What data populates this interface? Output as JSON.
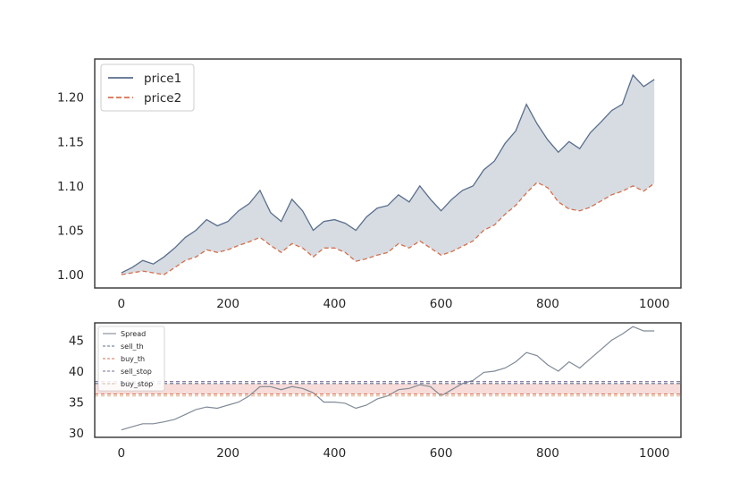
{
  "chart_data": [
    {
      "type": "line",
      "title": "",
      "xlabel": "",
      "ylabel": "",
      "xlim": [
        -50,
        1050
      ],
      "ylim": [
        0.985,
        1.243
      ],
      "xticks": [
        0,
        200,
        400,
        600,
        800,
        1000
      ],
      "xtick_labels": [
        "0",
        "200",
        "400",
        "600",
        "800",
        "1000"
      ],
      "yticks": [
        1.0,
        1.05,
        1.1,
        1.15,
        1.2
      ],
      "ytick_labels": [
        "1.00",
        "1.05",
        "1.10",
        "1.15",
        "1.20"
      ],
      "grid": false,
      "legend_position": "top-left",
      "fill_between": {
        "series": [
          "price1",
          "price2"
        ],
        "color": "#d6dce2"
      },
      "series": [
        {
          "name": "price1",
          "color": "#5a6e8c",
          "style": "solid",
          "x": [
            0,
            20,
            40,
            60,
            80,
            100,
            120,
            140,
            160,
            180,
            200,
            220,
            240,
            260,
            280,
            300,
            320,
            340,
            360,
            380,
            400,
            420,
            440,
            460,
            480,
            500,
            520,
            540,
            560,
            580,
            600,
            620,
            640,
            660,
            680,
            700,
            720,
            740,
            760,
            780,
            800,
            820,
            840,
            860,
            880,
            900,
            920,
            940,
            960,
            980,
            1000
          ],
          "values": [
            1.002,
            1.008,
            1.016,
            1.012,
            1.02,
            1.03,
            1.042,
            1.05,
            1.062,
            1.055,
            1.06,
            1.072,
            1.08,
            1.095,
            1.07,
            1.06,
            1.085,
            1.072,
            1.05,
            1.06,
            1.062,
            1.058,
            1.05,
            1.065,
            1.075,
            1.078,
            1.09,
            1.082,
            1.1,
            1.085,
            1.072,
            1.085,
            1.095,
            1.1,
            1.118,
            1.128,
            1.148,
            1.162,
            1.192,
            1.17,
            1.152,
            1.138,
            1.15,
            1.142,
            1.16,
            1.172,
            1.185,
            1.192,
            1.225,
            1.212,
            1.22
          ]
        },
        {
          "name": "price2",
          "color": "#d4704e",
          "style": "dashed",
          "x": [
            0,
            20,
            40,
            60,
            80,
            100,
            120,
            140,
            160,
            180,
            200,
            220,
            240,
            260,
            280,
            300,
            320,
            340,
            360,
            380,
            400,
            420,
            440,
            460,
            480,
            500,
            520,
            540,
            560,
            580,
            600,
            620,
            640,
            660,
            680,
            700,
            720,
            740,
            760,
            780,
            800,
            820,
            840,
            860,
            880,
            900,
            920,
            940,
            960,
            980,
            1000
          ],
          "values": [
            1.0,
            1.002,
            1.004,
            1.002,
            1.0,
            1.008,
            1.016,
            1.02,
            1.028,
            1.025,
            1.028,
            1.033,
            1.037,
            1.042,
            1.033,
            1.025,
            1.035,
            1.03,
            1.02,
            1.03,
            1.03,
            1.025,
            1.015,
            1.018,
            1.022,
            1.025,
            1.035,
            1.03,
            1.038,
            1.03,
            1.022,
            1.026,
            1.032,
            1.038,
            1.05,
            1.056,
            1.068,
            1.078,
            1.092,
            1.104,
            1.098,
            1.082,
            1.074,
            1.072,
            1.076,
            1.083,
            1.09,
            1.094,
            1.1,
            1.094,
            1.103
          ]
        }
      ]
    },
    {
      "type": "line",
      "title": "",
      "xlabel": "",
      "ylabel": "",
      "xlim": [
        -50,
        1050
      ],
      "ylim": [
        29.3,
        47.8
      ],
      "xticks": [
        0,
        200,
        400,
        600,
        800,
        1000
      ],
      "xtick_labels": [
        "0",
        "200",
        "400",
        "600",
        "800",
        "1000"
      ],
      "yticks": [
        30,
        35,
        40,
        45
      ],
      "ytick_labels": [
        "30",
        "35",
        "40",
        "45"
      ],
      "grid": false,
      "legend_position": "top-left",
      "series": [
        {
          "name": "Spread",
          "color": "#808a96",
          "style": "solid",
          "x": [
            0,
            20,
            40,
            60,
            80,
            100,
            120,
            140,
            160,
            180,
            200,
            220,
            240,
            260,
            280,
            300,
            320,
            340,
            360,
            380,
            400,
            420,
            440,
            460,
            480,
            500,
            520,
            540,
            560,
            580,
            600,
            620,
            640,
            660,
            680,
            700,
            720,
            740,
            760,
            780,
            800,
            820,
            840,
            860,
            880,
            900,
            920,
            940,
            960,
            980,
            1000
          ],
          "values": [
            30.5,
            31.0,
            31.5,
            31.5,
            31.8,
            32.2,
            33.0,
            33.8,
            34.2,
            34.0,
            34.5,
            35.0,
            36.0,
            37.5,
            37.5,
            37.0,
            37.5,
            37.2,
            36.5,
            35.0,
            35.0,
            34.8,
            34.0,
            34.5,
            35.5,
            36.0,
            37.0,
            37.2,
            37.8,
            37.5,
            36.0,
            37.0,
            38.0,
            38.5,
            39.8,
            40.0,
            40.5,
            41.5,
            43.0,
            42.5,
            41.0,
            40.0,
            41.5,
            40.5,
            42.0,
            43.5,
            45.0,
            46.0,
            47.2,
            46.5,
            46.5
          ]
        },
        {
          "name": "sell_th",
          "color": "#5a6e8c",
          "style": "dashed",
          "y": 38.0
        },
        {
          "name": "buy_th",
          "color": "#d4704e",
          "style": "dashed",
          "y": 36.3
        },
        {
          "name": "sell_stop",
          "color": "#7b6a96",
          "style": "dashed",
          "y": 38.3
        },
        {
          "name": "buy_stop",
          "color": "#e0b898",
          "style": "dashed",
          "y": 36.0
        }
      ],
      "band": {
        "from": 36.3,
        "to": 38.0,
        "color": "#f2c4c0"
      }
    }
  ]
}
